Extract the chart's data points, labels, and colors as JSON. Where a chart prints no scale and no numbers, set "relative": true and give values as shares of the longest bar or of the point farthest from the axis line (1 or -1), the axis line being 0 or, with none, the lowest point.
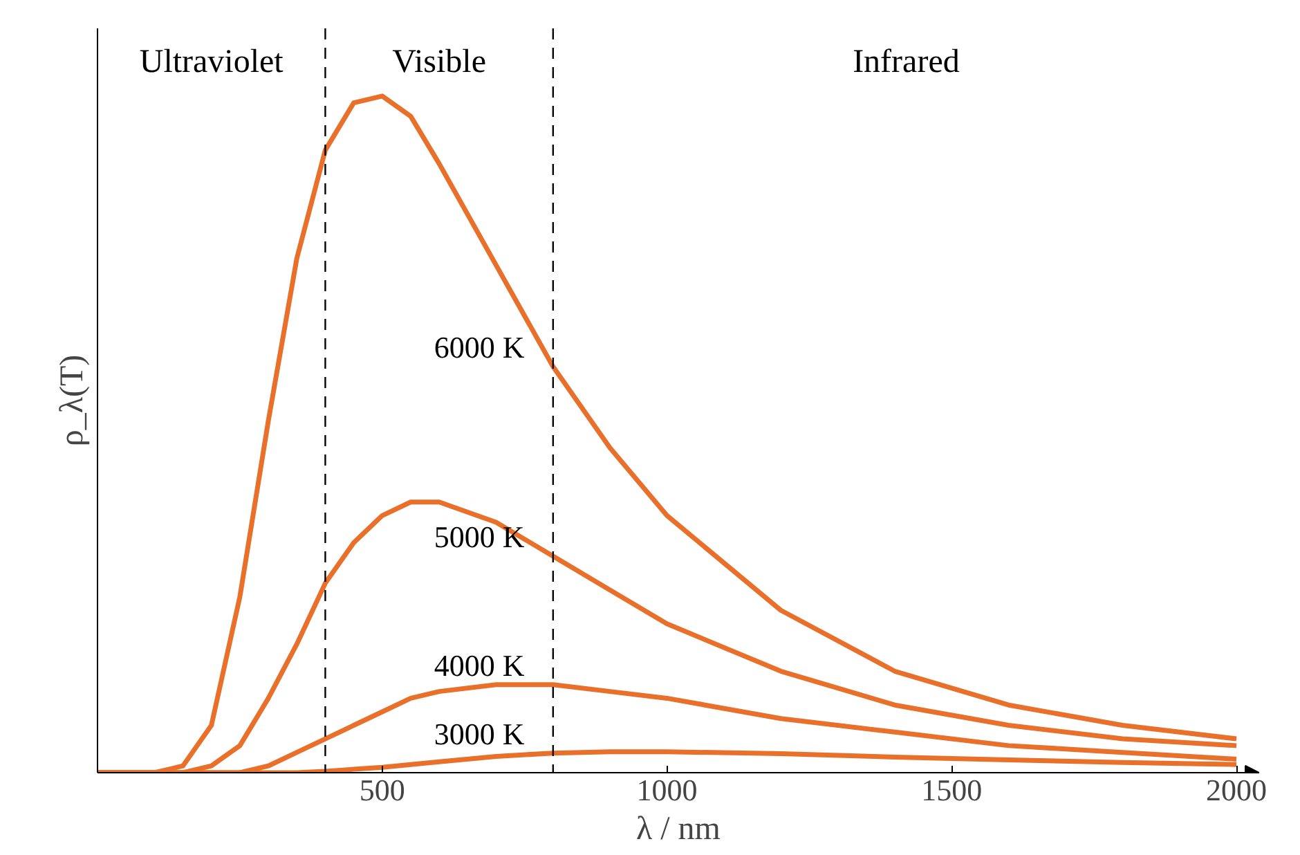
{
  "chart_data": {
    "type": "line",
    "relative": true,
    "xlabel": "λ / nm",
    "ylabel": "ρ_λ(T)",
    "xlim": [
      0,
      2040
    ],
    "xticks": [
      500,
      1000,
      1500,
      2000
    ],
    "grid": false,
    "legend": false,
    "marker": "none",
    "line_style": "solid",
    "x": [
      0,
      100,
      150,
      200,
      250,
      300,
      350,
      400,
      450,
      500,
      550,
      600,
      700,
      800,
      900,
      1000,
      1200,
      1400,
      1600,
      1800,
      2000
    ],
    "series": [
      {
        "name": "6000 K",
        "color": "#e8702a",
        "values": [
          0,
          0,
          0.01,
          0.07,
          0.26,
          0.52,
          0.76,
          0.92,
          0.99,
          1.0,
          0.97,
          0.9,
          0.75,
          0.6,
          0.48,
          0.38,
          0.24,
          0.15,
          0.1,
          0.07,
          0.05
        ]
      },
      {
        "name": "5000 K",
        "color": "#e8702a",
        "values": [
          0,
          0,
          0,
          0.01,
          0.04,
          0.11,
          0.19,
          0.28,
          0.34,
          0.38,
          0.4,
          0.4,
          0.37,
          0.32,
          0.27,
          0.22,
          0.15,
          0.1,
          0.07,
          0.05,
          0.04
        ]
      },
      {
        "name": "4000 K",
        "color": "#e8702a",
        "values": [
          0,
          0,
          0,
          0,
          0,
          0.01,
          0.03,
          0.05,
          0.07,
          0.09,
          0.11,
          0.12,
          0.13,
          0.13,
          0.12,
          0.11,
          0.08,
          0.06,
          0.04,
          0.03,
          0.02
        ]
      },
      {
        "name": "3000 K",
        "color": "#e8702a",
        "values": [
          0,
          0,
          0,
          0,
          0,
          0,
          0,
          0.002,
          0.005,
          0.008,
          0.012,
          0.016,
          0.024,
          0.029,
          0.031,
          0.031,
          0.028,
          0.023,
          0.019,
          0.015,
          0.012
        ]
      }
    ],
    "ref_lines": [
      {
        "axis": "x",
        "value": 400,
        "color": "#000000",
        "line_style": "dashed"
      },
      {
        "axis": "x",
        "value": 800,
        "color": "#000000",
        "line_style": "dashed"
      }
    ],
    "annotations": [
      "Ultraviolet",
      "Visible",
      "Infrared"
    ]
  }
}
